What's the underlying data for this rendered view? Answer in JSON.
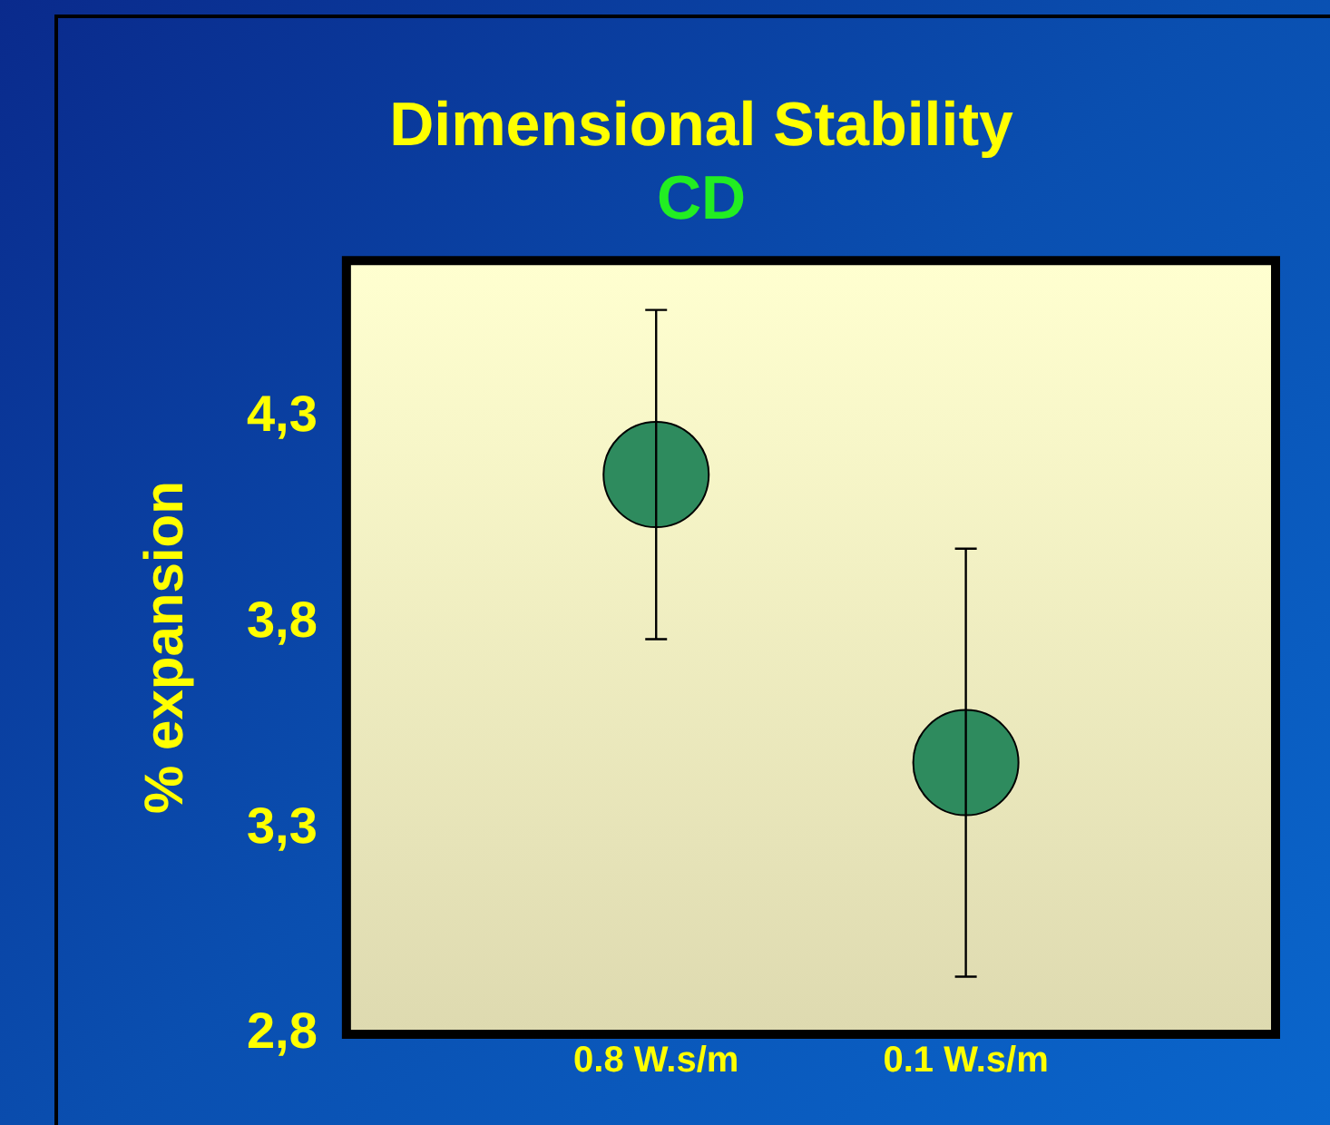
{
  "chart_data": {
    "type": "scatter",
    "title": "Dimensional Stability",
    "subtitle": "CD",
    "ylabel": "% expansion",
    "categories": [
      "0.8 W.s/m",
      "0.1 W.s/m"
    ],
    "series": [
      {
        "color": "#2e8b5e",
        "values": [
          4.16,
          3.46
        ],
        "errors": [
          [
            3.76,
            4.56
          ],
          [
            2.94,
            3.98
          ]
        ]
      }
    ],
    "ylim": [
      2.8,
      4.68
    ],
    "yticks": [
      {
        "value": 2.8,
        "label": "2,8"
      },
      {
        "value": 3.3,
        "label": "3,3"
      },
      {
        "value": 3.8,
        "label": "3,8"
      },
      {
        "value": 4.3,
        "label": "4,3"
      }
    ],
    "grid": false,
    "legend": false,
    "marker": "circle"
  }
}
